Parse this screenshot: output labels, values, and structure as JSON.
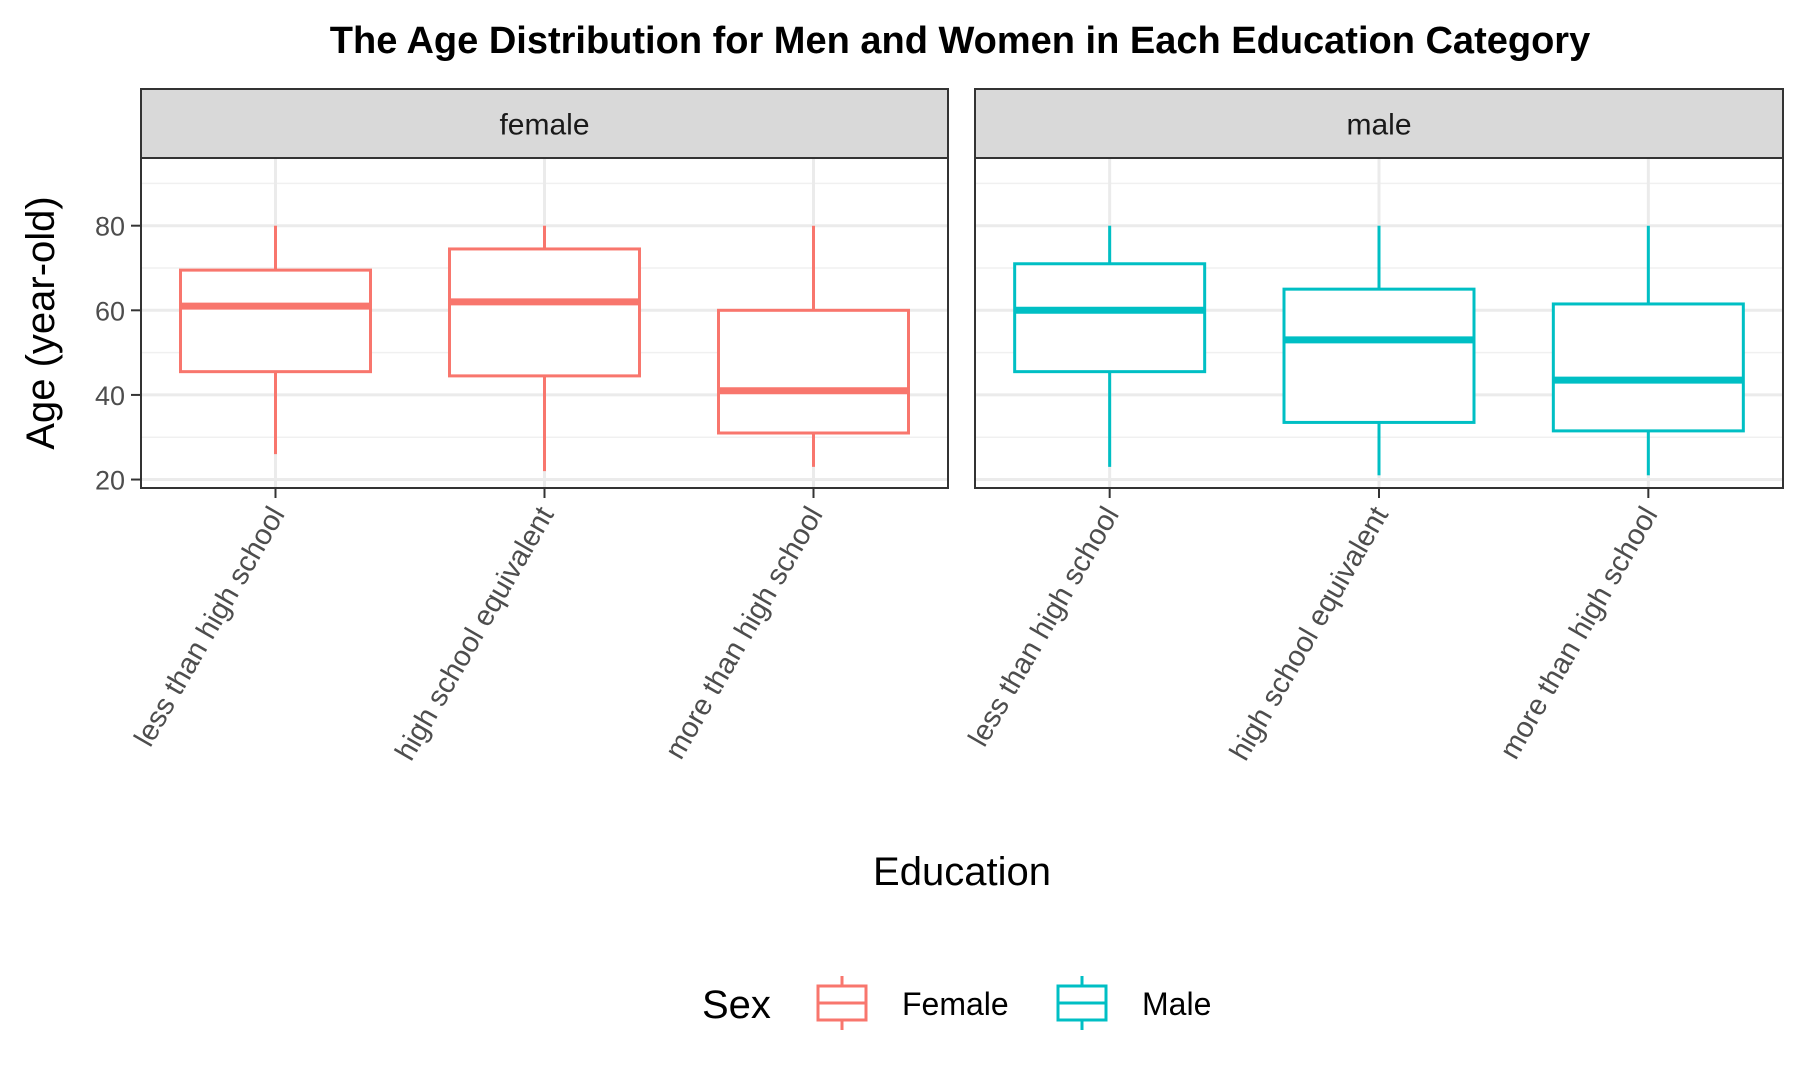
{
  "chart_data": {
    "type": "box",
    "title": "The Age Distribution for Men and Women in Each Education Category",
    "xlabel": "Education",
    "ylabel": "Age (year-old)",
    "categories": [
      "less than high school",
      "high school equivalent",
      "more than high school"
    ],
    "y_ticks": [
      20,
      40,
      60,
      80
    ],
    "ylim": [
      18,
      96
    ],
    "grid": true,
    "legend": {
      "title": "Sex",
      "placement": "bottom",
      "entries": [
        {
          "label": "Female",
          "color": "#F8766D"
        },
        {
          "label": "Male",
          "color": "#00BFC4"
        }
      ]
    },
    "panels": [
      {
        "strip": "female",
        "color": "#F8766D",
        "boxes": [
          {
            "category": "less than high school",
            "min": 26,
            "q1": 45.5,
            "median": 61,
            "q3": 69.5,
            "max": 80
          },
          {
            "category": "high school equivalent",
            "min": 22,
            "q1": 44.5,
            "median": 62,
            "q3": 74.5,
            "max": 80
          },
          {
            "category": "more than high school",
            "min": 23,
            "q1": 31,
            "median": 41,
            "q3": 60,
            "max": 80
          }
        ]
      },
      {
        "strip": "male",
        "color": "#00BFC4",
        "boxes": [
          {
            "category": "less than high school",
            "min": 23,
            "q1": 45.5,
            "median": 60,
            "q3": 71,
            "max": 80
          },
          {
            "category": "high school equivalent",
            "min": 21,
            "q1": 33.5,
            "median": 53,
            "q3": 65,
            "max": 80
          },
          {
            "category": "more than high school",
            "min": 21,
            "q1": 31.5,
            "median": 43.5,
            "q3": 61.5,
            "max": 80
          }
        ]
      }
    ]
  }
}
